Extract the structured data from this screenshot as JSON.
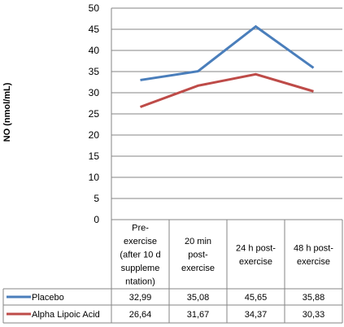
{
  "chart_data": {
    "type": "line",
    "title": "",
    "xlabel": "",
    "ylabel": "NO (nmol/mL)",
    "ylim": [
      0,
      50
    ],
    "y_ticks": [
      "0",
      "5",
      "10",
      "15",
      "20",
      "25",
      "30",
      "35",
      "40",
      "45",
      "50"
    ],
    "grid": true,
    "legend": "data-table",
    "categories": [
      [
        "Pre-",
        "exercise",
        "(after 10 d",
        "suppleme",
        "ntation)"
      ],
      [
        "20 min",
        "post-",
        "exercise"
      ],
      [
        "24 h post-",
        "exercise"
      ],
      [
        "48 h post-",
        "exercise"
      ]
    ],
    "series": [
      {
        "name": "Placebo",
        "color": "#4A7EBB",
        "values": [
          32.99,
          35.08,
          45.65,
          35.88
        ],
        "labels": [
          "32,99",
          "35,08",
          "45,65",
          "35,88"
        ]
      },
      {
        "name": "Alpha Lipoic Acid",
        "color": "#BE4B48",
        "values": [
          26.64,
          31.67,
          34.37,
          30.33
        ],
        "labels": [
          "26,64",
          "31,67",
          "34,37",
          "30,33"
        ]
      }
    ]
  }
}
